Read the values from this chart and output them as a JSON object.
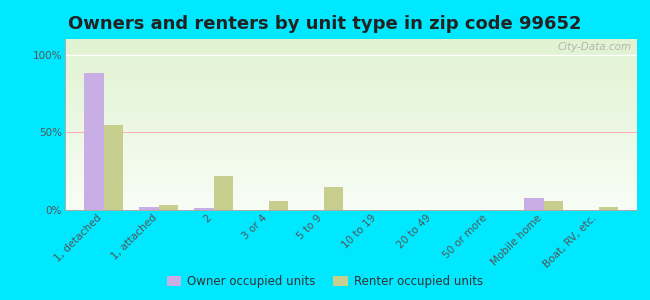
{
  "title": "Owners and renters by unit type in zip code 99652",
  "categories": [
    "1, detached",
    "1, attached",
    "2",
    "3 or 4",
    "5 to 9",
    "10 to 19",
    "20 to 49",
    "50 or more",
    "Mobile home",
    "Boat, RV, etc."
  ],
  "owner_values": [
    88,
    2,
    1,
    0,
    0,
    0,
    0,
    0,
    8,
    0
  ],
  "renter_values": [
    55,
    3,
    22,
    6,
    15,
    0,
    0,
    0,
    6,
    2
  ],
  "owner_color": "#c9aee5",
  "renter_color": "#c8cf8e",
  "background_outer": "#00e8ff",
  "yticks": [
    0,
    50,
    100
  ],
  "ylim": [
    0,
    110
  ],
  "watermark": "City-Data.com",
  "legend_owner": "Owner occupied units",
  "legend_renter": "Renter occupied units",
  "title_fontsize": 13,
  "tick_fontsize": 7.5,
  "legend_fontsize": 8.5
}
